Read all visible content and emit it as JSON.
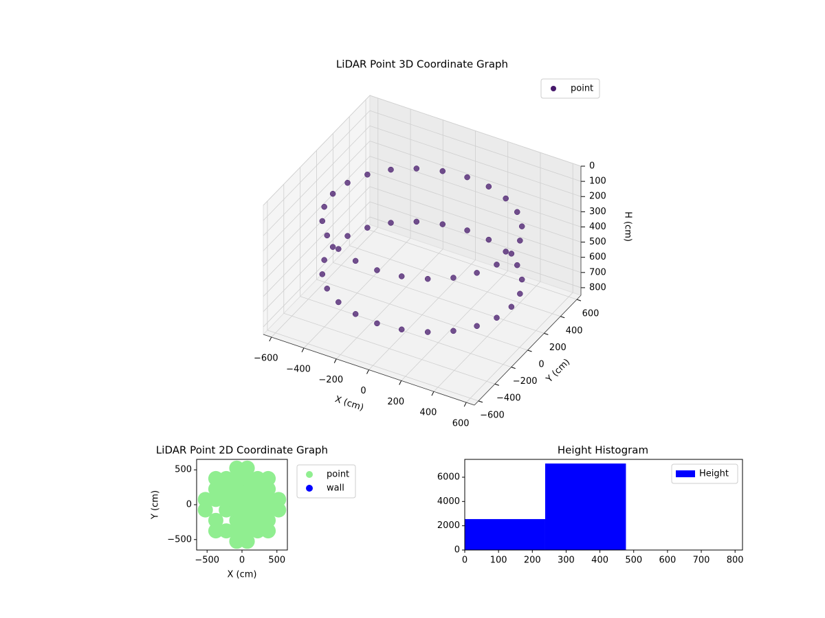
{
  "chart_data": [
    {
      "type": "scatter3d",
      "title": "LiDAR Point 3D Coordinate Graph",
      "x_label": "X (cm)",
      "y_label": "Y (cm)",
      "z_label": "H (cm)",
      "xlim": [
        -650,
        650
      ],
      "ylim": [
        -650,
        650
      ],
      "zlim": [
        850,
        0
      ],
      "xticks": [
        {
          "value": -600,
          "label": "−600"
        },
        {
          "value": -400,
          "label": "−400"
        },
        {
          "value": -200,
          "label": "−200"
        },
        0,
        200,
        400,
        600
      ],
      "yticks": [
        {
          "value": -600,
          "label": "−600"
        },
        {
          "value": -400,
          "label": "−400"
        },
        {
          "value": -200,
          "label": "−200"
        },
        0,
        200,
        400,
        600
      ],
      "zticks": [
        0,
        100,
        200,
        300,
        400,
        500,
        600,
        700,
        800
      ],
      "legend": "upper right",
      "series": [
        {
          "name": "point",
          "color": "#46186b",
          "x": [
            550,
            531,
            476,
            389,
            275,
            142,
            0,
            -142,
            -275,
            -389,
            -476,
            -531,
            -550,
            -531,
            -476,
            -389,
            -275,
            -142,
            0,
            142,
            275,
            389,
            476,
            531,
            550,
            531,
            476,
            389,
            275,
            142,
            0,
            -142,
            -275,
            -389,
            -476,
            -531,
            -550,
            -531,
            -476,
            -389,
            -275,
            -142,
            0,
            142,
            275,
            389,
            476,
            531
          ],
          "y": [
            0,
            142,
            275,
            389,
            476,
            531,
            550,
            531,
            476,
            389,
            275,
            142,
            0,
            -142,
            -275,
            -389,
            -476,
            -531,
            -550,
            -531,
            -476,
            -389,
            -275,
            -142,
            0,
            142,
            275,
            389,
            476,
            531,
            550,
            531,
            476,
            389,
            275,
            142,
            0,
            -142,
            -275,
            -389,
            -476,
            -531,
            -550,
            -531,
            -476,
            -389,
            -275,
            -142
          ],
          "z": [
            250,
            250,
            250,
            250,
            250,
            250,
            250,
            250,
            250,
            250,
            250,
            250,
            250,
            250,
            250,
            250,
            250,
            250,
            250,
            250,
            250,
            250,
            250,
            250,
            600,
            600,
            600,
            600,
            600,
            600,
            600,
            600,
            600,
            600,
            600,
            600,
            600,
            600,
            600,
            600,
            600,
            600,
            600,
            600,
            600,
            600,
            600,
            600
          ]
        }
      ]
    },
    {
      "type": "scatter",
      "title": "LiDAR Point 2D Coordinate Graph",
      "x_label": "X (cm)",
      "y_label": "Y (cm)",
      "xlim": [
        -650,
        650
      ],
      "ylim": [
        -650,
        650
      ],
      "xticks": [
        {
          "value": -500,
          "label": "−500"
        },
        0,
        500
      ],
      "yticks": [
        {
          "value": -500,
          "label": "−500"
        },
        0,
        500
      ],
      "legend": "outside right",
      "series": [
        {
          "name": "point",
          "color": "#90ee90",
          "x": [
            -525,
            -525,
            -375,
            -375,
            -375,
            -375,
            -375,
            -225,
            -225,
            -225,
            -225,
            -225,
            -75,
            -75,
            -75,
            -75,
            -75,
            -75,
            -75,
            -75,
            75,
            75,
            75,
            75,
            75,
            75,
            75,
            75,
            225,
            225,
            225,
            225,
            225,
            225,
            375,
            375,
            375,
            375,
            375,
            375,
            525,
            525
          ],
          "y": [
            -75,
            75,
            -375,
            -225,
            75,
            225,
            375,
            -375,
            -75,
            75,
            225,
            375,
            -525,
            -375,
            -225,
            -75,
            75,
            225,
            375,
            525,
            -525,
            -375,
            -225,
            -75,
            75,
            225,
            375,
            525,
            -375,
            -225,
            -75,
            75,
            225,
            375,
            -375,
            -225,
            -75,
            75,
            225,
            375,
            -75,
            75
          ]
        },
        {
          "name": "wall",
          "color": "#0000ff",
          "x": [],
          "y": []
        }
      ]
    },
    {
      "type": "histogram",
      "title": "Height Histogram",
      "xlim": [
        0,
        822
      ],
      "ylim": [
        0,
        7470
      ],
      "xticks": [
        0,
        100,
        200,
        300,
        400,
        500,
        600,
        700,
        800
      ],
      "yticks": [
        0,
        2000,
        4000,
        6000
      ],
      "legend": "upper right",
      "bins": [
        0,
        238,
        477,
        715
      ],
      "series": [
        {
          "name": "Height",
          "color": "#0000ff",
          "values": [
            2550,
            7130,
            0
          ]
        }
      ]
    }
  ]
}
